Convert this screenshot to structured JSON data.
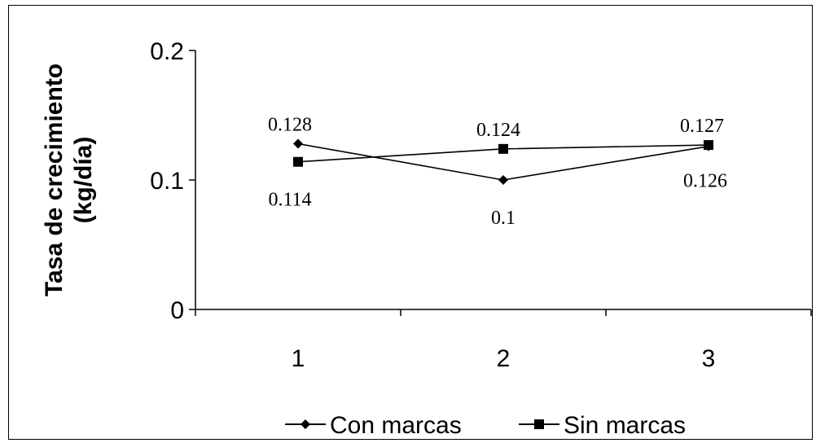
{
  "chart_data": {
    "type": "line",
    "title": "",
    "xlabel": "",
    "ylabel_lines": [
      "Tasa de crecimiento",
      "(kg/día)"
    ],
    "x": [
      1,
      2,
      3
    ],
    "x_tick_labels": [
      "1",
      "2",
      "3"
    ],
    "y_tick_labels": [
      "0",
      "0.1",
      "0.2"
    ],
    "ylim": [
      0,
      0.2
    ],
    "grid": false,
    "legend_position": "bottom",
    "series": [
      {
        "name": "Con marcas",
        "marker": "diamond",
        "values": [
          0.128,
          0.1,
          0.126
        ],
        "labels": [
          "0.128",
          "0.1",
          "0.126"
        ],
        "color": "#000000"
      },
      {
        "name": "Sin marcas",
        "marker": "square",
        "values": [
          0.114,
          0.124,
          0.127
        ],
        "labels": [
          "0.114",
          "0.124",
          "0.127"
        ],
        "color": "#000000"
      }
    ]
  }
}
